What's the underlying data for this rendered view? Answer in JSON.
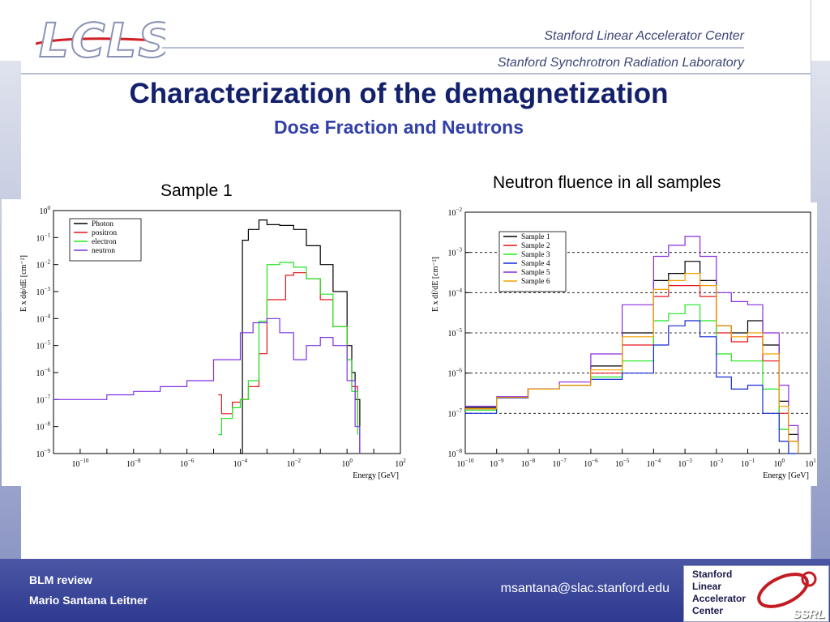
{
  "header": {
    "logo_text": "LCLS",
    "org_line_1": "Stanford Linear Accelerator Center",
    "org_line_2": "Stanford Synchrotron Radiation Laboratory"
  },
  "slide": {
    "title": "Characterization of the demagnetization",
    "subtitle": "Dose Fraction and Neutrons"
  },
  "left_panel": {
    "caption": "Sample 1"
  },
  "right_panel": {
    "caption": "Neutron fluence in all samples"
  },
  "footer": {
    "line1": "BLM review",
    "line2": "Mario Santana Leitner",
    "email": "msantana@slac.stanford.edu",
    "logo_lines": [
      "Stanford",
      "Linear",
      "Accelerator",
      "Center"
    ],
    "logo_badge": "SSRL"
  },
  "colors": {
    "title": "#13206b",
    "subtitle": "#3240a8",
    "footer": "#2e3990",
    "photon": "#000000",
    "positron": "#e8151b",
    "electron": "#1ee81e",
    "neutron": "#7f32e6",
    "sample1": "#000000",
    "sample2": "#e8151b",
    "sample3": "#1ee81e",
    "sample4": "#1428d8",
    "sample5": "#8a2be2",
    "sample6": "#f5a000"
  },
  "chart_data": [
    {
      "type": "line",
      "title": "",
      "xlabel": "Energy [GeV]",
      "ylabel": "E x dϕ/dE [cm⁻²]",
      "xscale": "log",
      "yscale": "log",
      "xlim": [
        1e-11,
        100
      ],
      "ylim": [
        1e-09,
        1
      ],
      "x_ticks": [
        -10,
        -8,
        -6,
        -4,
        -2,
        0,
        2
      ],
      "y_ticks": [
        0,
        -1,
        -2,
        -3,
        -4,
        -5,
        -6,
        -7,
        -8,
        -9
      ],
      "legend_position": "top-left",
      "grid": false,
      "series": [
        {
          "name": "Photon",
          "color": "#000000",
          "x": [
            0.0001,
            0.00012,
            0.0002,
            0.0005,
            0.001,
            0.003,
            0.01,
            0.03,
            0.1,
            0.3,
            1,
            1.5,
            2,
            3
          ],
          "y": [
            1e-09,
            0.08,
            0.2,
            0.45,
            0.3,
            0.28,
            0.2,
            0.05,
            0.01,
            0.001,
            1e-05,
            1e-06,
            1e-07,
            1e-09
          ]
        },
        {
          "name": "positron",
          "color": "#e8151b",
          "x": [
            1.5e-05,
            2e-05,
            5e-05,
            0.0001,
            0.0002,
            0.0005,
            0.001,
            0.005,
            0.01,
            0.03,
            0.1,
            0.3,
            1,
            1.5,
            2.5
          ],
          "y": [
            1.5e-07,
            3e-08,
            8e-08,
            1e-07,
            3e-07,
            5e-06,
            0.0005,
            0.004,
            0.005,
            0.003,
            0.0005,
            5e-05,
            3e-06,
            3e-07,
            1e-08
          ]
        },
        {
          "name": "electron",
          "color": "#1ee81e",
          "x": [
            1.5e-05,
            2e-05,
            5e-05,
            0.0001,
            0.0002,
            0.0005,
            0.001,
            0.003,
            0.01,
            0.03,
            0.1,
            0.3,
            1,
            1.5,
            2.5
          ],
          "y": [
            5e-09,
            2e-08,
            5e-08,
            1e-07,
            5e-07,
            8e-05,
            0.01,
            0.012,
            0.008,
            0.003,
            0.0008,
            5e-05,
            3e-06,
            2e-07,
            5e-09
          ]
        },
        {
          "name": "neutron",
          "color": "#7f32e6",
          "x": [
            1e-11,
            1e-10,
            1e-09,
            1e-08,
            1e-07,
            1e-06,
            1e-05,
            0.0001,
            0.0003,
            0.001,
            0.003,
            0.01,
            0.03,
            0.1,
            0.3,
            1,
            2,
            3
          ],
          "y": [
            1e-07,
            1e-07,
            1.5e-07,
            2e-07,
            3e-07,
            5e-07,
            3e-06,
            3e-05,
            7e-05,
            0.0001,
            3e-05,
            3e-06,
            1e-05,
            2e-05,
            1e-05,
            5e-07,
            1e-08,
            1e-09
          ]
        }
      ]
    },
    {
      "type": "line",
      "title": "",
      "xlabel": "Energy [GeV]",
      "ylabel": "E x df/dE [cm⁻²]",
      "xscale": "log",
      "yscale": "log",
      "xlim": [
        1e-10,
        10
      ],
      "ylim": [
        1e-08,
        0.01
      ],
      "x_ticks": [
        -10,
        -9,
        -8,
        -7,
        -6,
        -5,
        -4,
        -3,
        -2,
        -1,
        0,
        1
      ],
      "y_ticks": [
        -2,
        -3,
        -4,
        -5,
        -6,
        -7,
        -8
      ],
      "reference_lines_y": [
        0.001,
        0.0001,
        1e-05,
        1e-06,
        1e-07
      ],
      "legend_position": "top-left",
      "grid": false,
      "series": [
        {
          "name": "Sample 1",
          "color": "#000000",
          "x": [
            1e-10,
            1e-09,
            1e-08,
            1e-07,
            1e-06,
            1e-05,
            0.0001,
            0.0003,
            0.001,
            0.003,
            0.01,
            0.03,
            0.1,
            0.3,
            1,
            2,
            4
          ],
          "y": [
            1.4e-07,
            2.5e-07,
            4e-07,
            5e-07,
            1.5e-06,
            1e-05,
            0.0002,
            0.0003,
            0.0006,
            0.0002,
            1.5e-05,
            1e-05,
            2e-05,
            5e-06,
            2e-07,
            3e-08,
            1e-08
          ]
        },
        {
          "name": "Sample 2",
          "color": "#e8151b",
          "x": [
            1e-10,
            1e-09,
            1e-08,
            1e-07,
            1e-06,
            1e-05,
            0.0001,
            0.0003,
            0.001,
            0.003,
            0.01,
            0.03,
            0.1,
            0.3,
            1,
            2,
            4
          ],
          "y": [
            1.3e-07,
            2.5e-07,
            4e-07,
            5e-07,
            1e-06,
            5e-06,
            8e-05,
            0.00015,
            0.00015,
            8e-05,
            1e-05,
            6e-06,
            8e-06,
            2e-06,
            1e-07,
            2e-08,
            1e-08
          ]
        },
        {
          "name": "Sample 3",
          "color": "#1ee81e",
          "x": [
            1e-10,
            1e-09,
            1e-08,
            1e-07,
            1e-06,
            1e-05,
            0.0001,
            0.0003,
            0.001,
            0.003,
            0.01,
            0.03,
            0.1,
            0.3,
            1,
            2,
            4
          ],
          "y": [
            1.2e-07,
            2.4e-07,
            4e-07,
            5e-07,
            8e-07,
            2e-06,
            2e-05,
            3e-05,
            5e-05,
            2e-05,
            3e-06,
            2e-06,
            2e-06,
            4e-07,
            4e-08,
            1e-08,
            1e-08
          ]
        },
        {
          "name": "Sample 4",
          "color": "#1428d8",
          "x": [
            1e-10,
            1e-09,
            1e-08,
            1e-07,
            1e-06,
            1e-05,
            0.0001,
            0.0003,
            0.001,
            0.003,
            0.01,
            0.03,
            0.1,
            0.3,
            1,
            2,
            4
          ],
          "y": [
            1e-07,
            2.4e-07,
            4e-07,
            5e-07,
            7e-07,
            1e-06,
            5e-06,
            1.5e-05,
            2e-05,
            8e-06,
            8e-07,
            4e-07,
            5e-07,
            1e-07,
            2e-08,
            1e-08,
            1e-08
          ]
        },
        {
          "name": "Sample 5",
          "color": "#8a2be2",
          "x": [
            1e-10,
            1e-09,
            1e-08,
            1e-07,
            1e-06,
            1e-05,
            0.0001,
            0.0003,
            0.001,
            0.003,
            0.01,
            0.03,
            0.1,
            0.3,
            1,
            2,
            4
          ],
          "y": [
            1.5e-07,
            2.6e-07,
            4e-07,
            6e-07,
            3e-06,
            5e-05,
            0.0008,
            0.0015,
            0.0025,
            0.0008,
            0.0001,
            6e-05,
            5e-05,
            1e-05,
            5e-07,
            5e-08,
            1e-08
          ]
        },
        {
          "name": "Sample 6",
          "color": "#f5a000",
          "x": [
            1e-10,
            1e-09,
            1e-08,
            1e-07,
            1e-06,
            1e-05,
            0.0001,
            0.0003,
            0.001,
            0.003,
            0.01,
            0.03,
            0.1,
            0.3,
            1,
            2,
            4
          ],
          "y": [
            1.3e-07,
            2.5e-07,
            4e-07,
            5e-07,
            1.2e-06,
            8e-06,
            0.00012,
            0.0002,
            0.0003,
            0.00015,
            1.5e-05,
            8e-06,
            1e-05,
            3e-06,
            1.5e-07,
            2e-08,
            1e-08
          ]
        }
      ]
    }
  ]
}
